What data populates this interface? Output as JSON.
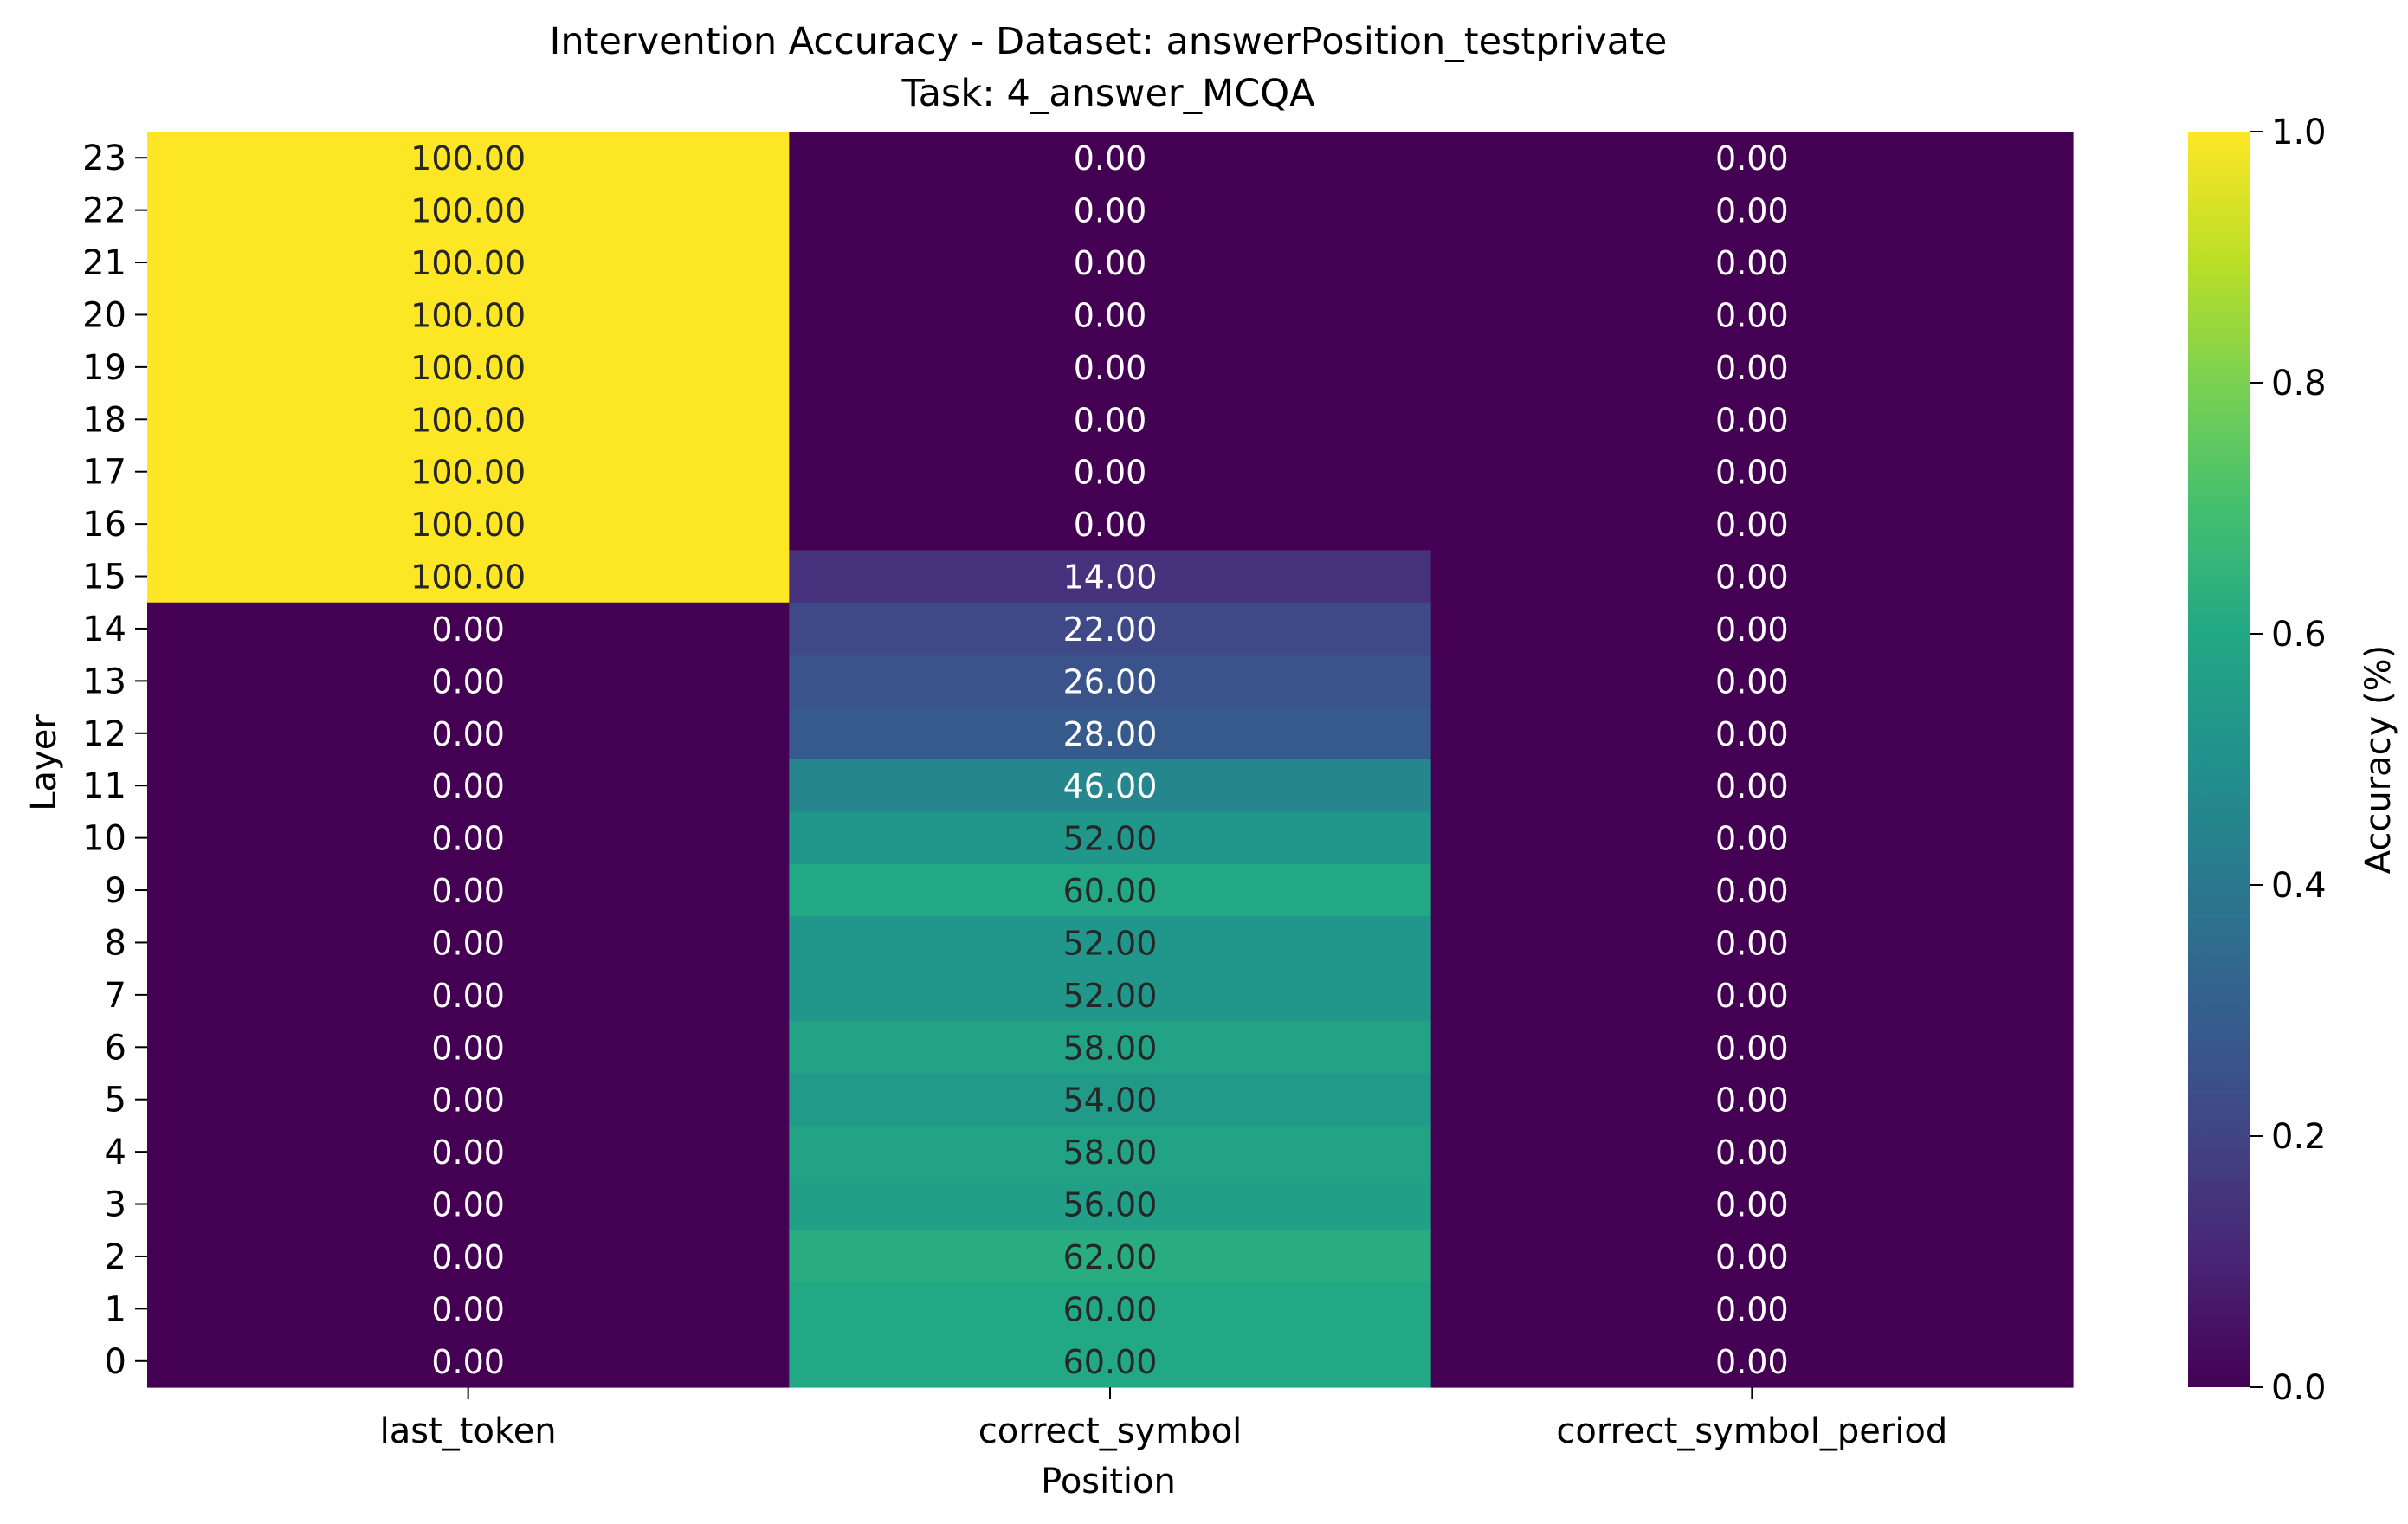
{
  "chart_data": {
    "type": "heatmap",
    "title": "Intervention Accuracy - Dataset: answerPosition_testprivate",
    "subtitle": "Task: 4_answer_MCQA",
    "xlabel": "Position",
    "ylabel": "Layer",
    "x_categories": [
      "last_token",
      "correct_symbol",
      "correct_symbol_period"
    ],
    "y_categories": [
      "23",
      "22",
      "21",
      "20",
      "19",
      "18",
      "17",
      "16",
      "15",
      "14",
      "13",
      "12",
      "11",
      "10",
      "9",
      "8",
      "7",
      "6",
      "5",
      "4",
      "3",
      "2",
      "1",
      "0"
    ],
    "values": [
      [
        1.0,
        0.0,
        0.0
      ],
      [
        1.0,
        0.0,
        0.0
      ],
      [
        1.0,
        0.0,
        0.0
      ],
      [
        1.0,
        0.0,
        0.0
      ],
      [
        1.0,
        0.0,
        0.0
      ],
      [
        1.0,
        0.0,
        0.0
      ],
      [
        1.0,
        0.0,
        0.0
      ],
      [
        1.0,
        0.0,
        0.0
      ],
      [
        1.0,
        0.14,
        0.0
      ],
      [
        0.0,
        0.22,
        0.0
      ],
      [
        0.0,
        0.26,
        0.0
      ],
      [
        0.0,
        0.28,
        0.0
      ],
      [
        0.0,
        0.46,
        0.0
      ],
      [
        0.0,
        0.52,
        0.0
      ],
      [
        0.0,
        0.6,
        0.0
      ],
      [
        0.0,
        0.52,
        0.0
      ],
      [
        0.0,
        0.52,
        0.0
      ],
      [
        0.0,
        0.58,
        0.0
      ],
      [
        0.0,
        0.54,
        0.0
      ],
      [
        0.0,
        0.58,
        0.0
      ],
      [
        0.0,
        0.56,
        0.0
      ],
      [
        0.0,
        0.62,
        0.0
      ],
      [
        0.0,
        0.6,
        0.0
      ],
      [
        0.0,
        0.6,
        0.0
      ]
    ],
    "cell_labels": [
      [
        "100.00",
        "0.00",
        "0.00"
      ],
      [
        "100.00",
        "0.00",
        "0.00"
      ],
      [
        "100.00",
        "0.00",
        "0.00"
      ],
      [
        "100.00",
        "0.00",
        "0.00"
      ],
      [
        "100.00",
        "0.00",
        "0.00"
      ],
      [
        "100.00",
        "0.00",
        "0.00"
      ],
      [
        "100.00",
        "0.00",
        "0.00"
      ],
      [
        "100.00",
        "0.00",
        "0.00"
      ],
      [
        "100.00",
        "14.00",
        "0.00"
      ],
      [
        "0.00",
        "22.00",
        "0.00"
      ],
      [
        "0.00",
        "26.00",
        "0.00"
      ],
      [
        "0.00",
        "28.00",
        "0.00"
      ],
      [
        "0.00",
        "46.00",
        "0.00"
      ],
      [
        "0.00",
        "52.00",
        "0.00"
      ],
      [
        "0.00",
        "60.00",
        "0.00"
      ],
      [
        "0.00",
        "52.00",
        "0.00"
      ],
      [
        "0.00",
        "52.00",
        "0.00"
      ],
      [
        "0.00",
        "58.00",
        "0.00"
      ],
      [
        "0.00",
        "54.00",
        "0.00"
      ],
      [
        "0.00",
        "58.00",
        "0.00"
      ],
      [
        "0.00",
        "56.00",
        "0.00"
      ],
      [
        "0.00",
        "62.00",
        "0.00"
      ],
      [
        "0.00",
        "60.00",
        "0.00"
      ],
      [
        "0.00",
        "60.00",
        "0.00"
      ]
    ],
    "colorbar": {
      "label": "Accuracy (%)",
      "range": [
        0.0,
        1.0
      ],
      "ticks": [
        "0.0",
        "0.2",
        "0.4",
        "0.6",
        "0.8",
        "1.0"
      ],
      "colormap": "viridis"
    },
    "grid": false
  }
}
